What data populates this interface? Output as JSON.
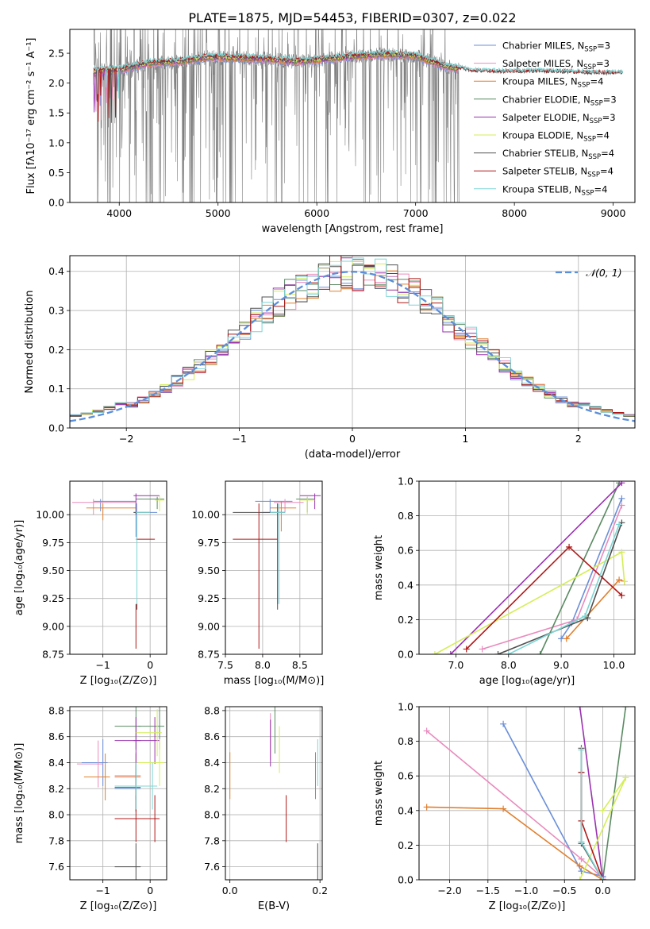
{
  "title": "PLATE=1875, MJD=54453, FIBERID=0307, z=0.022",
  "colors": {
    "chabrier_miles": "#6a8fd8",
    "salpeter_miles": "#e98bbd",
    "kroupa_miles": "#e17f2d",
    "chabrier_elodie": "#5a8a62",
    "salpeter_elodie": "#9932b0",
    "kroupa_elodie": "#d4ee58",
    "chabrier_stelib": "#505050",
    "salpeter_stelib": "#b01818",
    "kroupa_stelib": "#7fd6d6",
    "data": "#808080",
    "normal": "#5b8fdb"
  },
  "chart_data": [
    {
      "id": "spectrum",
      "type": "line",
      "title": "PLATE=1875, MJD=54453, FIBERID=0307, z=0.022",
      "xlabel": "wavelength [Angstrom, rest frame]",
      "ylabel": "Flux [fλ10⁻¹⁷ erg cm⁻² s⁻¹ A⁻¹]",
      "xlim": [
        3500,
        9220
      ],
      "ylim": [
        0,
        2.9
      ],
      "xticks": [
        4000,
        5000,
        6000,
        7000,
        8000,
        9000
      ],
      "yticks": [
        0.0,
        0.5,
        1.0,
        1.5,
        2.0,
        2.5
      ],
      "legend": [
        "Chabrier MILES, N_SSP=3",
        "Salpeter MILES, N_SSP=3",
        "Kroupa MILES, N_SSP=4",
        "Chabrier ELODIE, N_SSP=3",
        "Salpeter ELODIE, N_SSP=3",
        "Kroupa ELODIE, N_SSP=4",
        "Chabrier STELIB, N_SSP=4",
        "Salpeter STELIB, N_SSP=4",
        "Kroupa STELIB, N_SSP=4"
      ],
      "legend_loc": "upper right",
      "continuum_x": [
        3750,
        4000,
        4300,
        4600,
        4900,
        5200,
        5500,
        5800,
        6100,
        6400,
        6700,
        7000,
        7300,
        7600,
        7900,
        8200,
        8500,
        8800,
        9100
      ],
      "continuum_y": [
        2.2,
        2.22,
        2.33,
        2.36,
        2.43,
        2.42,
        2.4,
        2.36,
        2.4,
        2.45,
        2.48,
        2.45,
        2.28,
        2.18,
        2.17,
        2.18,
        2.17,
        2.15,
        2.15
      ]
    },
    {
      "id": "residuals",
      "type": "line",
      "xlabel": "(data-model)/error",
      "ylabel": "Normed distribution",
      "xlim": [
        -2.5,
        2.5
      ],
      "ylim": [
        0,
        0.44
      ],
      "xticks": [
        -2,
        -1,
        0,
        1,
        2
      ],
      "yticks": [
        0.0,
        0.1,
        0.2,
        0.3,
        0.4
      ],
      "legend": [
        "𝒩(0, 1)"
      ],
      "legend_loc": "upper right",
      "grid": true
    },
    {
      "id": "age_vs_Z",
      "type": "scatter",
      "xlabel": "Z [log₁₀(Z/Z⊙)]",
      "ylabel": "age  [log₁₀(age/yr)]",
      "xlim": [
        -1.7,
        0.35
      ],
      "ylim": [
        8.75,
        10.3
      ],
      "xticks": [
        -1,
        0
      ],
      "yticks": [
        8.75,
        9.0,
        9.25,
        9.5,
        9.75,
        10.0
      ],
      "ytick_labels": [
        "8.75",
        "9.00",
        "9.25",
        "9.50",
        "9.75",
        "10.00"
      ],
      "grid": true
    },
    {
      "id": "age_vs_mass",
      "type": "scatter",
      "xlabel": "mass [log₁₀(M/M⊙)]",
      "xlim": [
        7.5,
        8.8
      ],
      "ylim": [
        8.75,
        10.3
      ],
      "xticks": [
        7.5,
        8.0,
        8.5
      ],
      "yticks": [
        8.75,
        9.0,
        9.25,
        9.5,
        9.75,
        10.0
      ],
      "ytick_labels": [
        "8.75",
        "9.00",
        "9.25",
        "9.50",
        "9.75",
        "10.00"
      ],
      "grid": true
    },
    {
      "id": "weight_vs_age",
      "type": "line",
      "xlabel": "age  [log₁₀(age/yr)]",
      "ylabel": "mass weight",
      "xlim": [
        6.3,
        10.4
      ],
      "ylim": [
        0,
        1
      ],
      "xticks": [
        7,
        8,
        9,
        10
      ],
      "yticks": [
        0.0,
        0.2,
        0.4,
        0.6,
        0.8,
        1.0
      ],
      "grid": true
    },
    {
      "id": "mass_vs_Z",
      "type": "scatter",
      "xlabel": "Z [log₁₀(Z/Z⊙)]",
      "ylabel": "mass [log₁₀(M/M⊙)]",
      "xlim": [
        -1.7,
        0.35
      ],
      "ylim": [
        7.5,
        8.83
      ],
      "xticks": [
        -1,
        0
      ],
      "yticks": [
        7.6,
        7.8,
        8.0,
        8.2,
        8.4,
        8.6,
        8.8
      ],
      "grid": true
    },
    {
      "id": "mass_vs_ebv",
      "type": "scatter",
      "xlabel": "E(B-V)",
      "xlim": [
        -0.01,
        0.205
      ],
      "ylim": [
        7.5,
        8.83
      ],
      "xticks": [
        0.0,
        0.2
      ],
      "yticks": [
        7.6,
        7.8,
        8.0,
        8.2,
        8.4,
        8.6,
        8.8
      ],
      "grid": true
    },
    {
      "id": "weight_vs_Z",
      "type": "line",
      "xlabel": "Z [log₁₀(Z/Z⊙)]",
      "ylabel": "mass weight",
      "xlim": [
        -2.4,
        0.42
      ],
      "ylim": [
        0,
        1
      ],
      "xticks": [
        -2.0,
        -1.5,
        -1.0,
        -0.5,
        0.0
      ],
      "yticks": [
        0.0,
        0.2,
        0.4,
        0.6,
        0.8,
        1.0
      ],
      "grid": true
    }
  ],
  "hist": {
    "edges_min": -2.5,
    "bin_width": 0.1,
    "normal_curve": true
  },
  "models": {
    "chabrier_miles": {
      "age_z": [
        [
          -1.05,
          10.12,
          [
            -1.2,
            -0.3
          ],
          [
            10.03,
            10.14
          ]
        ],
        [
          -0.3,
          10.02,
          [
            -0.35,
            0.15
          ],
          [
            9.8,
            10.1
          ]
        ]
      ],
      "age_mass": [
        [
          8.1,
          10.12,
          [
            7.9,
            8.4
          ],
          [
            10.02,
            10.14
          ]
        ],
        [
          8.2,
          10.02,
          [
            8.0,
            8.3
          ],
          [
            9.2,
            10.1
          ]
        ]
      ],
      "w_age": [
        [
          9.0,
          0.09
        ],
        [
          9.2,
          0.18
        ],
        [
          10.15,
          0.9
        ]
      ],
      "w_z": [
        [
          -1.3,
          0.9
        ],
        [
          -0.28,
          0.05
        ],
        [
          0.0,
          0.02
        ]
      ],
      "m_z": [
        [
          -1.0,
          8.4
        ],
        [
          -0.3,
          8.2
        ]
      ],
      "m_ebv": [
        [
          0.19,
          8.3
        ]
      ]
    },
    "salpeter_miles": {
      "age_z": [
        [
          -1.2,
          10.11,
          [
            -1.65,
            -0.3
          ],
          [
            10.0,
            10.14
          ]
        ]
      ],
      "age_mass": [
        [
          8.3,
          10.11,
          [
            8.15,
            8.55
          ],
          [
            10.02,
            10.14
          ]
        ]
      ],
      "w_age": [
        [
          7.5,
          0.03
        ],
        [
          9.3,
          0.2
        ],
        [
          10.15,
          0.86
        ]
      ],
      "w_z": [
        [
          -2.3,
          0.86
        ],
        [
          -0.28,
          0.12
        ],
        [
          0.0,
          0.01
        ]
      ],
      "m_z": [
        [
          -1.1,
          8.39
        ],
        [
          -0.3,
          8.3
        ]
      ],
      "m_ebv": [
        [
          0.09,
          8.6
        ]
      ]
    },
    "kroupa_miles": {
      "age_z": [
        [
          -1.0,
          10.06,
          [
            -1.35,
            -0.3
          ],
          [
            9.95,
            10.1
          ]
        ]
      ],
      "age_mass": [
        [
          8.25,
          10.06,
          [
            8.1,
            8.45
          ],
          [
            9.85,
            10.12
          ]
        ]
      ],
      "w_age": [
        [
          9.1,
          0.09
        ],
        [
          10.1,
          0.43
        ],
        [
          10.2,
          0.42
        ]
      ],
      "w_z": [
        [
          -2.3,
          0.42
        ],
        [
          -1.3,
          0.41
        ],
        [
          -0.3,
          0.08
        ],
        [
          0.0,
          0.0
        ]
      ],
      "m_z": [
        [
          -0.95,
          8.29
        ],
        [
          -0.3,
          8.29
        ]
      ],
      "m_ebv": [
        [
          0.0,
          8.3
        ]
      ]
    },
    "chabrier_elodie": {
      "age_z": [
        [
          0.15,
          10.14,
          [
            -0.3,
            0.3
          ],
          [
            10.05,
            10.16
          ]
        ]
      ],
      "age_mass": [
        [
          8.6,
          10.14,
          [
            8.45,
            8.7
          ],
          [
            10.02,
            10.16
          ]
        ]
      ],
      "w_age": [
        [
          8.6,
          0.0
        ],
        [
          10.1,
          0.99
        ]
      ],
      "w_z": [
        [
          0.0,
          0.0
        ],
        [
          0.3,
          1.0
        ]
      ],
      "m_z": [
        [
          0.2,
          8.68
        ],
        [
          -0.3,
          8.68
        ]
      ],
      "m_ebv": [
        [
          0.1,
          8.65
        ]
      ]
    },
    "salpeter_elodie": {
      "age_z": [
        [
          -0.3,
          10.17,
          [
            -0.35,
            0.2
          ],
          [
            10.0,
            10.19
          ]
        ]
      ],
      "age_mass": [
        [
          8.7,
          10.17,
          [
            8.5,
            8.78
          ],
          [
            10.05,
            10.19
          ]
        ]
      ],
      "w_age": [
        [
          6.9,
          0.0
        ],
        [
          10.15,
          0.99
        ]
      ],
      "w_z": [
        [
          -0.3,
          1.0
        ],
        [
          0.0,
          0.0
        ]
      ],
      "m_z": [
        [
          -0.3,
          8.57
        ],
        [
          0.1,
          8.57
        ]
      ],
      "m_ebv": [
        [
          0.09,
          8.55
        ]
      ]
    },
    "kroupa_elodie": {
      "age_z": [
        [
          0.2,
          10.13,
          [
            0.1,
            0.3
          ],
          [
            10.03,
            10.17
          ]
        ]
      ],
      "age_mass": [
        [
          8.6,
          10.13,
          [
            8.5,
            8.7
          ],
          [
            10.0,
            10.16
          ]
        ]
      ],
      "w_age": [
        [
          6.6,
          0.0
        ],
        [
          10.15,
          0.59
        ],
        [
          10.2,
          0.42
        ]
      ],
      "w_z": [
        [
          0.0,
          0.4
        ],
        [
          0.3,
          0.59
        ],
        [
          -0.3,
          0.0
        ]
      ],
      "m_z": [
        [
          0.15,
          8.63
        ],
        [
          0.2,
          8.4
        ]
      ],
      "m_ebv": [
        [
          0.11,
          8.5
        ]
      ]
    },
    "chabrier_stelib": {
      "age_z": [
        [
          -0.28,
          10.02,
          [
            -0.35,
            0.0
          ],
          [
            9.15,
            10.1
          ]
        ]
      ],
      "age_mass": [
        [
          8.2,
          10.02,
          [
            7.6,
            8.3
          ],
          [
            9.15,
            10.1
          ]
        ]
      ],
      "w_age": [
        [
          7.8,
          0.0
        ],
        [
          9.5,
          0.21
        ],
        [
          10.15,
          0.76
        ]
      ],
      "w_z": [
        [
          -0.28,
          0.76
        ],
        [
          -0.28,
          0.62
        ],
        [
          -0.28,
          0.21
        ],
        [
          0.0,
          0.0
        ]
      ],
      "m_z": [
        [
          -0.3,
          7.6
        ],
        [
          -0.3,
          8.21
        ]
      ],
      "m_ebv": [
        [
          0.195,
          7.6
        ]
      ]
    },
    "salpeter_stelib": {
      "age_z": [
        [
          -0.3,
          9.78,
          [
            -0.3,
            0.1
          ],
          [
            8.8,
            9.2
          ]
        ]
      ],
      "age_mass": [
        [
          7.95,
          9.78,
          [
            7.6,
            8.2
          ],
          [
            8.8,
            10.1
          ]
        ]
      ],
      "w_age": [
        [
          7.2,
          0.03
        ],
        [
          9.15,
          0.62
        ],
        [
          10.15,
          0.34
        ]
      ],
      "w_z": [
        [
          -0.28,
          0.62
        ],
        [
          -0.28,
          0.34
        ],
        [
          0.0,
          0.0
        ]
      ],
      "m_z": [
        [
          -0.3,
          7.97
        ],
        [
          0.1,
          7.97
        ]
      ],
      "m_ebv": [
        [
          0.125,
          7.97
        ]
      ]
    },
    "kroupa_stelib": {
      "age_z": [
        [
          -0.28,
          10.02,
          [
            -0.3,
            0.0
          ],
          [
            9.2,
            10.1
          ]
        ]
      ],
      "age_mass": [
        [
          8.22,
          10.02,
          [
            8.1,
            8.3
          ],
          [
            9.2,
            10.1
          ]
        ]
      ],
      "w_age": [
        [
          8.0,
          0.0
        ],
        [
          9.45,
          0.22
        ],
        [
          10.1,
          0.75
        ]
      ],
      "w_z": [
        [
          -0.28,
          0.75
        ],
        [
          -0.28,
          0.22
        ],
        [
          0.0,
          0.0
        ]
      ],
      "m_z": [
        [
          -0.3,
          8.22
        ],
        [
          0.05,
          8.22
        ]
      ],
      "m_ebv": [
        [
          0.195,
          8.4
        ]
      ]
    }
  }
}
